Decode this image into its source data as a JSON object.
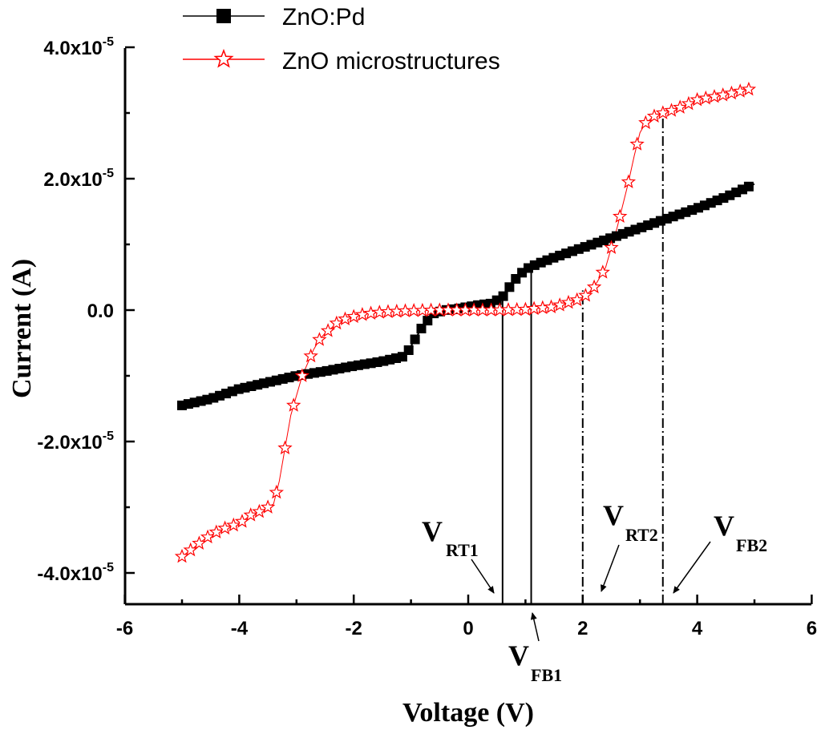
{
  "chart_data": {
    "type": "line",
    "title": "",
    "xlabel": "Voltage (V)",
    "ylabel": "Current (A)",
    "xlim": [
      -6,
      6
    ],
    "ylim": [
      -4.5e-05,
      4.5e-05
    ],
    "x_ticks": [
      {
        "value": -6,
        "label": "-6"
      },
      {
        "value": -4,
        "label": "-4"
      },
      {
        "value": -2,
        "label": "-2"
      },
      {
        "value": 0,
        "label": "0"
      },
      {
        "value": 2,
        "label": "2"
      },
      {
        "value": 4,
        "label": "4"
      },
      {
        "value": 6,
        "label": "6"
      }
    ],
    "y_ticks": [
      {
        "value": 4e-05,
        "mantissa": "4.0x10",
        "exponent": "-5"
      },
      {
        "value": 2e-05,
        "mantissa": "2.0x10",
        "exponent": "-5"
      },
      {
        "value": 0,
        "mantissa": "0.0",
        "exponent": ""
      },
      {
        "value": -2e-05,
        "mantissa": "-2.0x10",
        "exponent": "-5"
      },
      {
        "value": -4e-05,
        "mantissa": "-4.0x10",
        "exponent": "-5"
      }
    ],
    "series": [
      {
        "name": "ZnO:Pd",
        "color": "#000000",
        "marker": "square",
        "x": [
          -5.0,
          -4.5,
          -4.0,
          -3.5,
          -3.0,
          -2.5,
          -2.0,
          -1.5,
          -1.1,
          -1.0,
          -0.8,
          -0.6,
          -0.4,
          -0.2,
          0.0,
          0.2,
          0.4,
          0.6,
          0.8,
          1.0,
          1.2,
          1.5,
          2.0,
          2.5,
          3.0,
          3.5,
          4.0,
          4.5,
          5.0
        ],
        "y": [
          -1.45e-05,
          -1.35e-05,
          -1.2e-05,
          -1.1e-05,
          -1e-05,
          -9.3e-06,
          -8.5e-06,
          -7.8e-06,
          -7e-06,
          -5.5e-06,
          -2.5e-06,
          -5e-07,
          0.0,
          2e-07,
          5e-07,
          8e-07,
          1e-06,
          2e-06,
          4.5e-06,
          6.2e-06,
          7e-06,
          8e-06,
          9.5e-06,
          1.1e-05,
          1.25e-05,
          1.4e-05,
          1.55e-05,
          1.72e-05,
          1.92e-05
        ]
      },
      {
        "name": "ZnO microstructures",
        "color": "#ff0000",
        "marker": "star",
        "x": [
          -5.0,
          -4.8,
          -4.6,
          -4.4,
          -4.2,
          -4.0,
          -3.8,
          -3.6,
          -3.4,
          -3.3,
          -3.2,
          -3.1,
          -3.0,
          -2.9,
          -2.8,
          -2.7,
          -2.6,
          -2.5,
          -2.4,
          -2.3,
          -2.2,
          -2.0,
          -1.8,
          -1.5,
          -1.0,
          -0.5,
          0.0,
          0.5,
          1.0,
          1.5,
          2.0,
          2.2,
          2.4,
          2.5,
          2.6,
          2.7,
          2.8,
          2.9,
          3.0,
          3.1,
          3.2,
          3.3,
          3.4,
          3.6,
          3.8,
          4.0,
          4.5,
          5.0
        ],
        "y": [
          -3.75e-05,
          -3.62e-05,
          -3.48e-05,
          -3.38e-05,
          -3.3e-05,
          -3.25e-05,
          -3.12e-05,
          -3.05e-05,
          -2.95e-05,
          -2.6e-05,
          -2.1e-05,
          -1.6e-05,
          -1.3e-05,
          -1e-05,
          -8e-06,
          -6e-06,
          -4.5e-06,
          -3.5e-06,
          -2.8e-06,
          -2e-06,
          -1.5e-06,
          -1e-06,
          -6e-07,
          -3e-07,
          -1e-07,
          0.0,
          0.0,
          0.0,
          1e-07,
          5e-07,
          1.8e-06,
          3.5e-06,
          6.5e-06,
          9.5e-06,
          1.25e-05,
          1.6e-05,
          1.95e-05,
          2.35e-05,
          2.7e-05,
          2.85e-05,
          2.92e-05,
          2.98e-05,
          3e-05,
          3.05e-05,
          3.12e-05,
          3.2e-05,
          3.28e-05,
          3.38e-05
        ]
      }
    ],
    "legend_position": "top-left",
    "vlines": [
      {
        "x": 0.6,
        "y_from": -4.5e-05,
        "y_to": 1.8e-06,
        "style": "solid"
      },
      {
        "x": 1.1,
        "y_from": -4.5e-05,
        "y_to": 6.5e-06,
        "style": "solid"
      },
      {
        "x": 2.0,
        "y_from": -4.5e-05,
        "y_to": 3e-06,
        "style": "dashdot"
      },
      {
        "x": 3.4,
        "y_from": -4.5e-05,
        "y_to": 3.05e-05,
        "style": "dashdot"
      }
    ],
    "annotations": [
      {
        "id": "vrt1",
        "main": "V",
        "sub": "RT1",
        "target_x": 0.6
      },
      {
        "id": "vfb1",
        "main": "V",
        "sub": "FB1",
        "target_x": 1.1
      },
      {
        "id": "vrt2",
        "main": "V",
        "sub": "RT2",
        "target_x": 2.0
      },
      {
        "id": "vfb2",
        "main": "V",
        "sub": "FB2",
        "target_x": 3.4
      }
    ]
  }
}
